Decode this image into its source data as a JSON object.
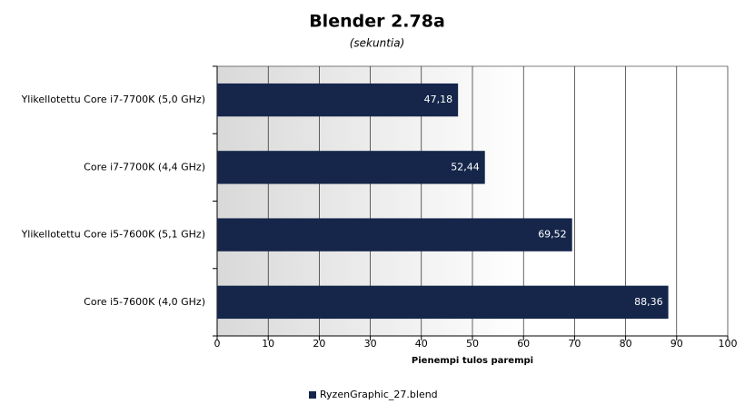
{
  "chart_data": {
    "type": "bar",
    "orientation": "horizontal",
    "title": "Blender 2.78a",
    "subtitle": "(sekuntia)",
    "xlabel": "Pienempi tulos parempi",
    "categories": [
      "Ylikellotettu Core i7-7700K (5,0 GHz)",
      "Core i7-7700K (4,4 GHz)",
      "Ylikellotettu Core i5-7600K (5,1 GHz)",
      "Core i5-7600K (4,0 GHz)"
    ],
    "series": [
      {
        "name": "RyzenGraphic_27.blend",
        "color": "#15264a",
        "values": [
          47.18,
          52.44,
          69.52,
          88.36
        ],
        "value_labels": [
          "47,18",
          "52,44",
          "69,52",
          "88,36"
        ]
      }
    ],
    "xlim": [
      0,
      100
    ],
    "xticks": [
      0,
      10,
      20,
      30,
      40,
      50,
      60,
      70,
      80,
      90,
      100
    ],
    "grid": true,
    "legend": "bottom"
  }
}
